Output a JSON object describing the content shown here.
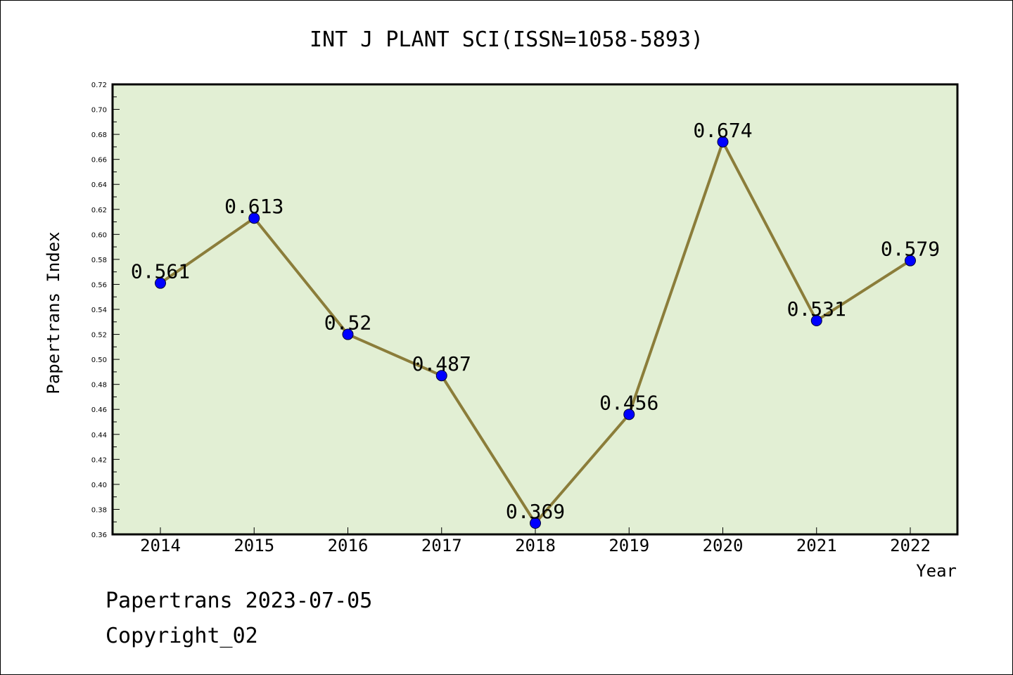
{
  "chart_data": {
    "type": "line",
    "title": "INT J PLANT SCI(ISSN=1058-5893)",
    "xlabel": "Year",
    "ylabel": "Papertrans Index",
    "categories": [
      "2014",
      "2015",
      "2016",
      "2017",
      "2018",
      "2019",
      "2020",
      "2021",
      "2022"
    ],
    "values": [
      0.561,
      0.613,
      0.52,
      0.487,
      0.369,
      0.456,
      0.674,
      0.531,
      0.579
    ],
    "data_labels": [
      "0.561",
      "0.613",
      "0.52",
      "0.487",
      "0.369",
      "0.456",
      "0.674",
      "0.531",
      "0.579"
    ],
    "ylim": [
      0.36,
      0.72
    ],
    "yticks": [
      "0.36",
      "0.38",
      "0.40",
      "0.42",
      "0.44",
      "0.46",
      "0.48",
      "0.50",
      "0.52",
      "0.54",
      "0.56",
      "0.58",
      "0.60",
      "0.62",
      "0.64",
      "0.66",
      "0.68",
      "0.70",
      "0.72"
    ],
    "grid": false,
    "legend": "none",
    "colors": {
      "plot_background": "#e2efd4",
      "line": "#8b7d3a",
      "marker": "#0000ff"
    }
  },
  "footer": {
    "line1": "Papertrans 2023-07-05",
    "line2": "Copyright_02"
  }
}
